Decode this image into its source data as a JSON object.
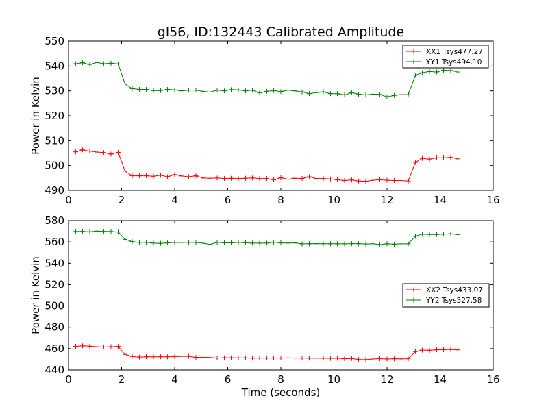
{
  "title": "gl56, ID:132443 Calibrated Amplitude",
  "chart_data": [
    {
      "type": "line",
      "ylabel": "Power in Kelvin",
      "xlabel": "",
      "xlim": [
        0,
        16
      ],
      "ylim": [
        490,
        550
      ],
      "xticks": [
        0,
        2,
        4,
        6,
        8,
        10,
        12,
        14,
        16
      ],
      "yticks": [
        490,
        500,
        510,
        520,
        530,
        540,
        550
      ],
      "grid": false,
      "legend_position": "top-right",
      "x": [
        0.27,
        0.53,
        0.8,
        1.07,
        1.33,
        1.6,
        1.87,
        2.13,
        2.4,
        2.67,
        2.93,
        3.2,
        3.47,
        3.73,
        4.0,
        4.27,
        4.53,
        4.8,
        5.07,
        5.33,
        5.6,
        5.87,
        6.13,
        6.4,
        6.67,
        6.93,
        7.2,
        7.47,
        7.73,
        8.0,
        8.27,
        8.53,
        8.8,
        9.07,
        9.33,
        9.6,
        9.87,
        10.13,
        10.4,
        10.67,
        10.93,
        11.2,
        11.47,
        11.73,
        12.0,
        12.27,
        12.53,
        12.8,
        13.07,
        13.33,
        13.6,
        13.87,
        14.13,
        14.4,
        14.67
      ],
      "series": [
        {
          "name": "XX1 Tsys477.27",
          "color": "#ff0000",
          "values": [
            505.5,
            506.3,
            505.8,
            505.4,
            505.2,
            504.6,
            505.3,
            497.8,
            495.9,
            495.9,
            495.9,
            495.7,
            496.1,
            495.5,
            496.4,
            495.8,
            495.5,
            495.9,
            495.0,
            494.9,
            495.0,
            494.8,
            494.9,
            494.8,
            494.9,
            495.0,
            494.8,
            494.8,
            494.3,
            495.1,
            494.5,
            494.9,
            494.8,
            495.5,
            494.8,
            494.8,
            494.6,
            494.3,
            494.0,
            494.2,
            493.8,
            493.7,
            494.1,
            494.3,
            494.1,
            494.0,
            494.0,
            493.8,
            501.3,
            502.9,
            502.6,
            503.1,
            503.1,
            503.3,
            502.7
          ]
        },
        {
          "name": "YY1 Tsys494.10",
          "color": "#008000",
          "values": [
            540.9,
            541.3,
            540.6,
            541.4,
            540.9,
            541.1,
            540.8,
            532.8,
            530.9,
            530.6,
            530.6,
            530.1,
            530.1,
            530.6,
            530.4,
            530.0,
            530.3,
            530.3,
            529.8,
            529.5,
            530.3,
            530.0,
            530.5,
            530.4,
            530.0,
            530.3,
            529.2,
            529.8,
            530.1,
            529.7,
            530.3,
            530.0,
            529.6,
            528.9,
            529.3,
            529.6,
            528.9,
            528.9,
            528.4,
            529.3,
            528.7,
            528.4,
            528.7,
            528.6,
            527.6,
            528.2,
            528.5,
            528.5,
            536.3,
            537.3,
            537.8,
            537.6,
            538.3,
            538.2,
            537.6
          ]
        }
      ]
    },
    {
      "type": "line",
      "ylabel": "Power in Kelvin",
      "xlabel": "Time (seconds)",
      "xlim": [
        0,
        16
      ],
      "ylim": [
        440,
        580
      ],
      "xticks": [
        0,
        2,
        4,
        6,
        8,
        10,
        12,
        14,
        16
      ],
      "yticks": [
        440,
        460,
        480,
        500,
        520,
        540,
        560,
        580
      ],
      "grid": false,
      "legend_position": "center-right",
      "x": [
        0.27,
        0.53,
        0.8,
        1.07,
        1.33,
        1.6,
        1.87,
        2.13,
        2.4,
        2.67,
        2.93,
        3.2,
        3.47,
        3.73,
        4.0,
        4.27,
        4.53,
        4.8,
        5.07,
        5.33,
        5.6,
        5.87,
        6.13,
        6.4,
        6.67,
        6.93,
        7.2,
        7.47,
        7.73,
        8.0,
        8.27,
        8.53,
        8.8,
        9.07,
        9.33,
        9.6,
        9.87,
        10.13,
        10.4,
        10.67,
        10.93,
        11.2,
        11.47,
        11.73,
        12.0,
        12.27,
        12.53,
        12.8,
        13.07,
        13.33,
        13.6,
        13.87,
        14.13,
        14.4,
        14.67
      ],
      "series": [
        {
          "name": "XX2 Tsys433.07",
          "color": "#ff0000",
          "values": [
            462.1,
            462.6,
            462.3,
            461.8,
            461.5,
            461.8,
            462.1,
            454.6,
            452.7,
            452.1,
            452.4,
            452.3,
            452.4,
            452.3,
            452.5,
            452.8,
            452.8,
            451.8,
            451.9,
            451.7,
            451.2,
            451.4,
            451.4,
            451.3,
            451.3,
            451.1,
            451.2,
            451.2,
            451.2,
            451.2,
            451.3,
            451.2,
            451.2,
            451.1,
            451.1,
            451.0,
            450.9,
            451.0,
            450.5,
            450.8,
            449.8,
            449.7,
            450.3,
            450.6,
            450.3,
            450.5,
            450.4,
            450.5,
            457.2,
            458.6,
            458.4,
            458.9,
            459.0,
            459.2,
            458.8
          ]
        },
        {
          "name": "YY2 Tsys527.58",
          "color": "#008000",
          "values": [
            569.8,
            569.9,
            569.5,
            570.2,
            569.9,
            569.8,
            569.3,
            562.4,
            560.3,
            559.6,
            559.6,
            558.9,
            558.7,
            559.1,
            559.5,
            559.5,
            559.6,
            559.5,
            558.8,
            557.7,
            559.6,
            559.2,
            559.1,
            559.6,
            559.2,
            558.9,
            558.9,
            558.9,
            559.8,
            559.1,
            558.9,
            559.1,
            558.2,
            558.3,
            558.4,
            558.3,
            558.3,
            558.3,
            558.2,
            558.4,
            558.4,
            558.1,
            558.3,
            557.5,
            558.3,
            557.9,
            558.2,
            558.2,
            565.4,
            567.4,
            567.0,
            567.0,
            567.4,
            567.6,
            566.9
          ]
        }
      ]
    }
  ]
}
